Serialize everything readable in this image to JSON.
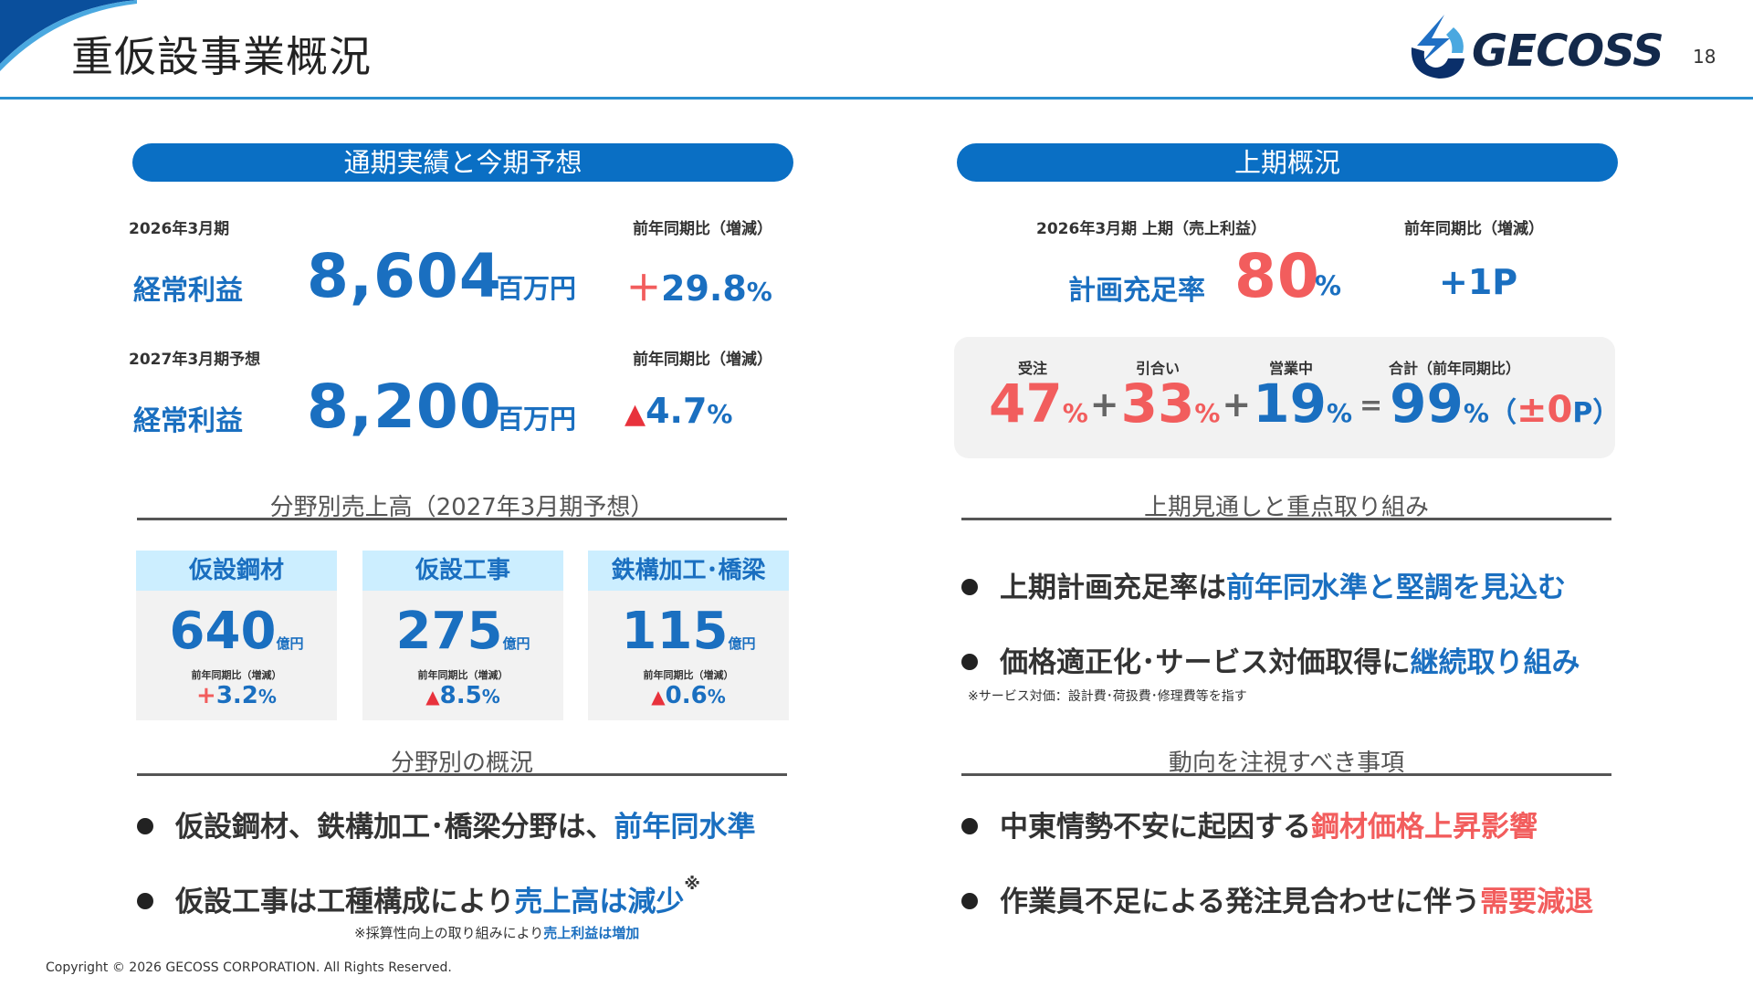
{
  "header": {
    "title": "重仮設事業概況",
    "logo_text": "GECOSS",
    "page_number": "18"
  },
  "left": {
    "pill": "通期実績と今期予想",
    "results": [
      {
        "period": "2026年3月期",
        "label": "経常利益",
        "value": "8,604",
        "unit": "百万円",
        "change_label": "前年同期比（増減）",
        "change_sign": "＋",
        "change_value": "29.8",
        "change_pct": "%"
      },
      {
        "period": "2027年3月期予想",
        "label": "経常利益",
        "value": "8,200",
        "unit": "百万円",
        "change_label": "前年同期比（増減）",
        "change_sign": "▲",
        "change_value": "4.7",
        "change_pct": "%"
      }
    ],
    "segment_heading": "分野別売上高（2027年3月期予想）",
    "segments": [
      {
        "name": "仮設鋼材",
        "value": "640",
        "unit": "億円",
        "sub": "前年同期比（増減）",
        "sign": "+",
        "change": "3.2",
        "pct": "%"
      },
      {
        "name": "仮設工事",
        "value": "275",
        "unit": "億円",
        "sub": "前年同期比（増減）",
        "sign": "▲",
        "change": "8.5",
        "pct": "%"
      },
      {
        "name": "鉄構加工･橋梁",
        "value": "115",
        "unit": "億円",
        "sub": "前年同期比（増減）",
        "sign": "▲",
        "change": "0.6",
        "pct": "%"
      }
    ],
    "overview_heading": "分野別の概況",
    "bullets": [
      {
        "text": "仮設鋼材、鉄構加工･橋梁分野は、",
        "highlight": "前年同水準",
        "sup": ""
      },
      {
        "text": "仮設工事は工種構成により",
        "highlight": "売上高は減少",
        "sup": "※"
      }
    ],
    "note": {
      "text": "※採算性向上の取り組みにより",
      "highlight": "売上利益は増加"
    }
  },
  "right": {
    "pill": "上期概況",
    "period_label": "2026年3月期 上期（売上利益）",
    "change_label": "前年同期比（増減）",
    "rate_label": "計画充足率",
    "rate_value": "80",
    "rate_pct": "%",
    "rate_change": "+1P",
    "breakdown": {
      "labels": [
        "受注",
        "引合い",
        "営業中",
        "合計（前年同期比）"
      ],
      "values": [
        "47",
        "33",
        "19",
        "99"
      ],
      "pct": "%",
      "plus": "+",
      "equals": "=",
      "paren_open": "（",
      "total_change": "±0",
      "total_unit": "P",
      "paren_close": "）"
    },
    "outlook_heading": "上期見通しと重点取り組み",
    "outlook_bullets": [
      {
        "text": "上期計画充足率は",
        "highlight": "前年同水準と堅調を見込む"
      },
      {
        "text": "価格適正化･サービス対価取得に",
        "highlight": "継続取り組み"
      }
    ],
    "outlook_note": "※サービス対価：設計費･荷扱費･修理費等を指す",
    "watch_heading": "動向を注視すべき事項",
    "watch_bullets": [
      {
        "text": "中東情勢不安に起因する",
        "highlight": "鋼材価格上昇影響"
      },
      {
        "text": "作業員不足による発注見合わせに伴う",
        "highlight": "需要減退"
      }
    ]
  },
  "footer": {
    "copyright": "Copyright © 2026 GECOSS CORPORATION. All Rights Reserved."
  },
  "colors": {
    "primary_blue": "#0a6fc4",
    "text_blue": "#1a6fc0",
    "accent_red": "#f25d5d",
    "segment_header_bg": "#cceeff",
    "panel_bg": "#f2f2f2"
  }
}
